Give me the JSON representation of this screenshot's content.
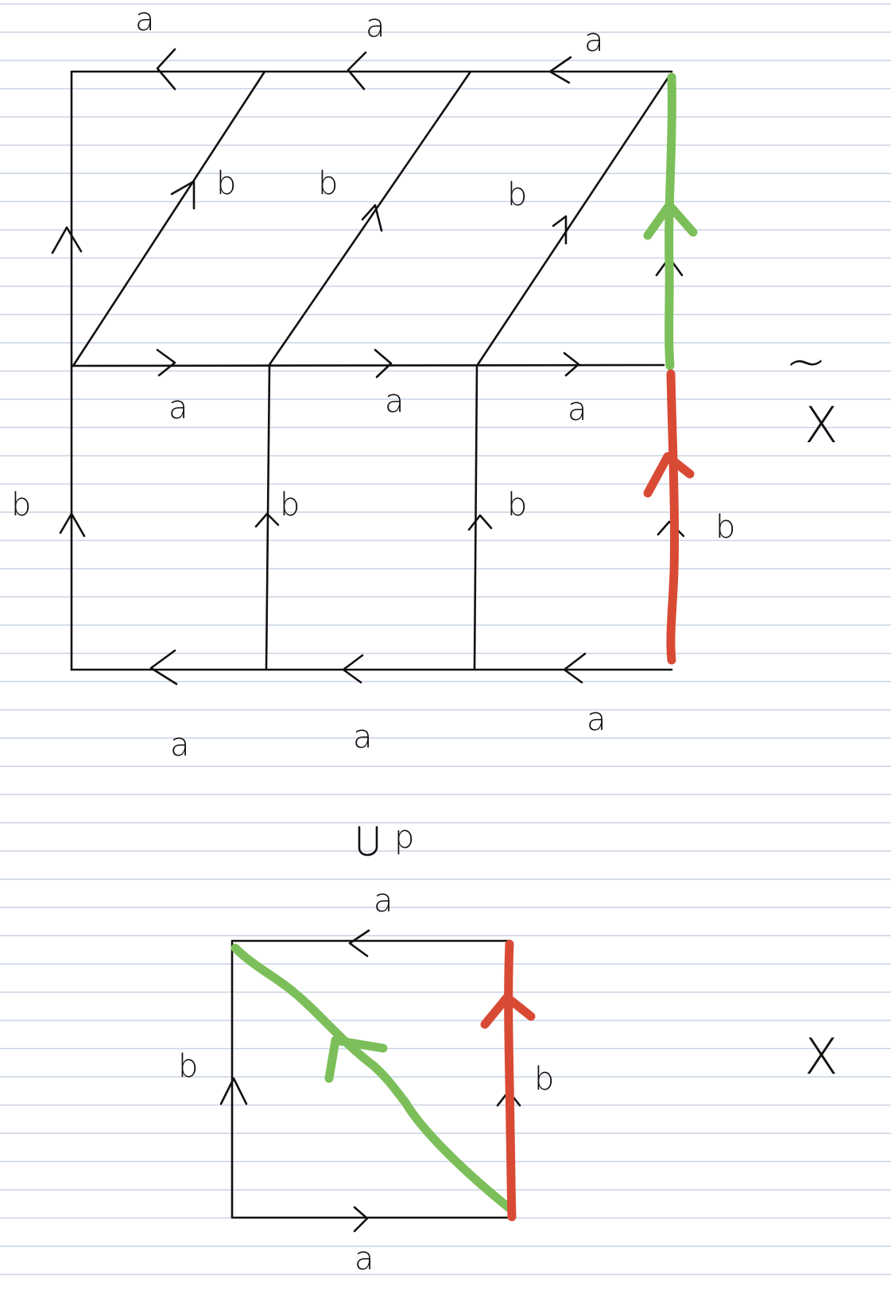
{
  "colors": {
    "paper": "#ffffff",
    "rule": "#c9d4e3",
    "ink": "#111111",
    "green_path": "#7cbf5a",
    "red_path": "#d94a35"
  },
  "labels": {
    "a": "a",
    "b": "b",
    "p": "p",
    "tilde": "~",
    "cover_space": "X",
    "base_space": "X"
  }
}
